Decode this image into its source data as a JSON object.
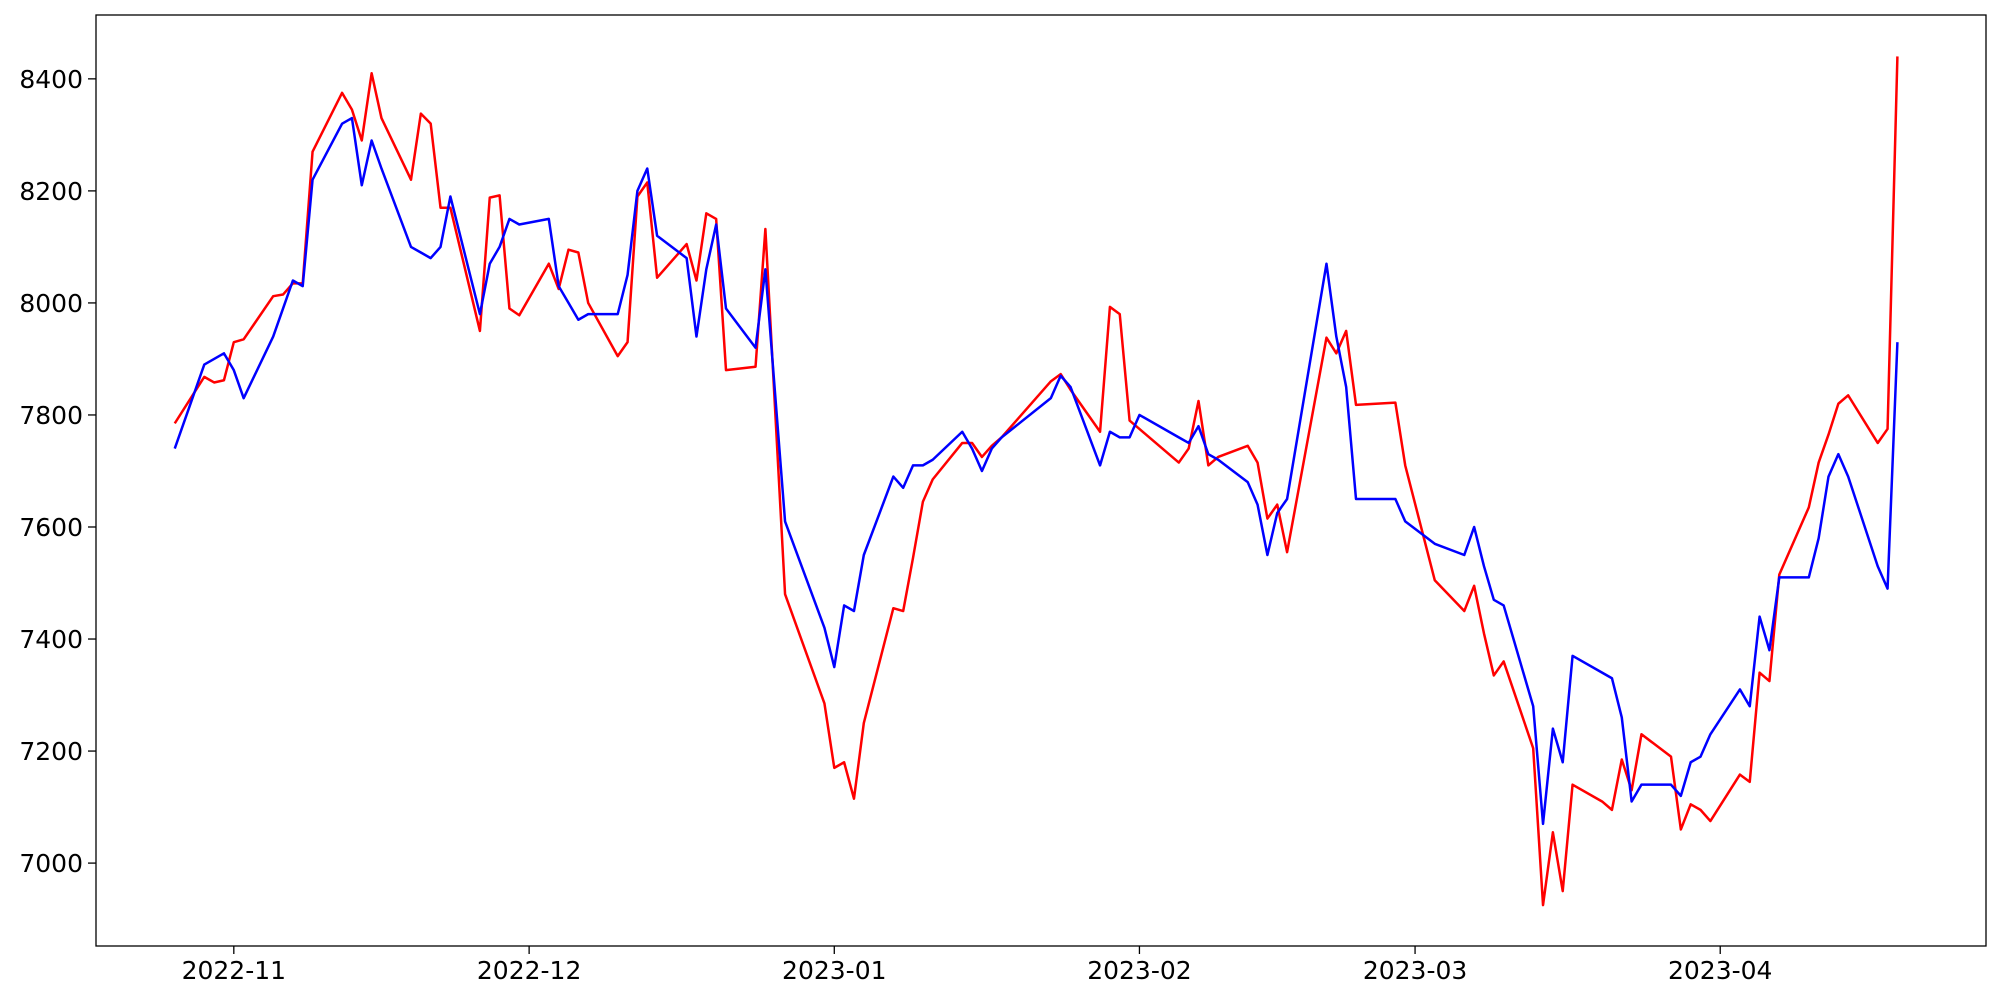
{
  "chart_data": {
    "type": "line",
    "x": [
      "2022-10-26",
      "2022-10-29",
      "2022-10-30",
      "2022-10-31",
      "2022-11-01",
      "2022-11-02",
      "2022-11-05",
      "2022-11-06",
      "2022-11-07",
      "2022-11-08",
      "2022-11-09",
      "2022-11-12",
      "2022-11-13",
      "2022-11-14",
      "2022-11-15",
      "2022-11-16",
      "2022-11-19",
      "2022-11-20",
      "2022-11-21",
      "2022-11-22",
      "2022-11-23",
      "2022-11-26",
      "2022-11-27",
      "2022-11-28",
      "2022-11-29",
      "2022-11-30",
      "2022-12-03",
      "2022-12-04",
      "2022-12-05",
      "2022-12-06",
      "2022-12-07",
      "2022-12-10",
      "2022-12-11",
      "2022-12-12",
      "2022-12-13",
      "2022-12-14",
      "2022-12-17",
      "2022-12-18",
      "2022-12-19",
      "2022-12-20",
      "2022-12-21",
      "2022-12-24",
      "2022-12-25",
      "2022-12-27",
      "2022-12-31",
      "2023-01-01",
      "2023-01-02",
      "2023-01-03",
      "2023-01-04",
      "2023-01-07",
      "2023-01-08",
      "2023-01-09",
      "2023-01-10",
      "2023-01-11",
      "2023-01-14",
      "2023-01-15",
      "2023-01-16",
      "2023-01-17",
      "2023-01-18",
      "2023-01-23",
      "2023-01-24",
      "2023-01-25",
      "2023-01-28",
      "2023-01-29",
      "2023-01-30",
      "2023-01-31",
      "2023-02-01",
      "2023-02-05",
      "2023-02-06",
      "2023-02-07",
      "2023-02-08",
      "2023-02-09",
      "2023-02-12",
      "2023-02-13",
      "2023-02-14",
      "2023-02-15",
      "2023-02-16",
      "2023-02-20",
      "2023-02-21",
      "2023-02-22",
      "2023-02-23",
      "2023-02-27",
      "2023-02-28",
      "2023-03-03",
      "2023-03-06",
      "2023-03-07",
      "2023-03-08",
      "2023-03-09",
      "2023-03-10",
      "2023-03-13",
      "2023-03-14",
      "2023-03-15",
      "2023-03-16",
      "2023-03-17",
      "2023-03-20",
      "2023-03-21",
      "2023-03-22",
      "2023-03-23",
      "2023-03-24",
      "2023-03-27",
      "2023-03-28",
      "2023-03-29",
      "2023-03-30",
      "2023-03-31",
      "2023-04-03",
      "2023-04-04",
      "2023-04-05",
      "2023-04-06",
      "2023-04-07",
      "2023-04-10",
      "2023-04-11",
      "2023-04-12",
      "2023-04-13",
      "2023-04-14",
      "2023-04-17",
      "2023-04-18",
      "2023-04-19"
    ],
    "series": [
      {
        "color": "#ff0000",
        "values": [
          7785,
          7868,
          7858,
          7862,
          7930,
          7935,
          8012,
          8015,
          8035,
          8035,
          8270,
          8375,
          8345,
          8290,
          8410,
          8330,
          8220,
          8338,
          8320,
          8170,
          8170,
          7950,
          8188,
          8192,
          7990,
          7978,
          8070,
          8025,
          8095,
          8090,
          8000,
          7905,
          7930,
          8190,
          8215,
          8045,
          8105,
          8040,
          8160,
          8150,
          7880,
          7886,
          8132,
          7480,
          7285,
          7170,
          7180,
          7115,
          7250,
          7455,
          7450,
          7545,
          7645,
          7685,
          7750,
          7750,
          7725,
          7745,
          7760,
          7860,
          7873,
          7845,
          7770,
          7993,
          7980,
          7790,
          7775,
          7715,
          7740,
          7825,
          7710,
          7725,
          7745,
          7715,
          7615,
          7640,
          7555,
          7938,
          7910,
          7950,
          7818,
          7822,
          7710,
          7505,
          7450,
          7495,
          7410,
          7335,
          7360,
          7205,
          6925,
          7055,
          6950,
          7140,
          7110,
          7095,
          7185,
          7130,
          7230,
          7190,
          7060,
          7105,
          7095,
          7075,
          7158,
          7145,
          7340,
          7325,
          7515,
          7635,
          7715,
          7765,
          7820,
          7835,
          7750,
          7775,
          8440
        ]
      },
      {
        "color": "#0000ff",
        "values": [
          7740,
          7890,
          7900,
          7910,
          7880,
          7830,
          7940,
          7990,
          8040,
          8030,
          8220,
          8320,
          8330,
          8210,
          8290,
          8240,
          8100,
          8090,
          8080,
          8100,
          8190,
          7980,
          8070,
          8100,
          8150,
          8140,
          8150,
          8030,
          8000,
          7970,
          7980,
          7980,
          8050,
          8200,
          8240,
          8120,
          8080,
          7940,
          8060,
          8140,
          7990,
          7920,
          8060,
          7610,
          7420,
          7350,
          7460,
          7450,
          7550,
          7690,
          7670,
          7710,
          7710,
          7720,
          7770,
          7740,
          7700,
          7740,
          7760,
          7830,
          7870,
          7850,
          7710,
          7770,
          7760,
          7760,
          7800,
          7760,
          7750,
          7780,
          7730,
          7720,
          7680,
          7640,
          7550,
          7625,
          7650,
          8070,
          7940,
          7850,
          7650,
          7650,
          7610,
          7570,
          7550,
          7600,
          7530,
          7470,
          7460,
          7280,
          7070,
          7240,
          7180,
          7370,
          7340,
          7330,
          7260,
          7110,
          7140,
          7140,
          7120,
          7180,
          7190,
          7230,
          7310,
          7280,
          7440,
          7380,
          7510,
          7510,
          7580,
          7690,
          7730,
          7690,
          7530,
          7490,
          7930
        ]
      }
    ],
    "xlim": [
      "2022-10-18",
      "2023-04-28"
    ],
    "xticks": [
      {
        "value": "2022-11-01",
        "label": "2022-11"
      },
      {
        "value": "2022-12-01",
        "label": "2022-12"
      },
      {
        "value": "2023-01-01",
        "label": "2023-01"
      },
      {
        "value": "2023-02-01",
        "label": "2023-02"
      },
      {
        "value": "2023-03-01",
        "label": "2023-03"
      },
      {
        "value": "2023-04-01",
        "label": "2023-04"
      }
    ],
    "ylim": [
      6852,
      8514
    ],
    "yticks": [
      7000,
      7200,
      7400,
      7600,
      7800,
      8000,
      8200,
      8400
    ],
    "grid": false
  }
}
